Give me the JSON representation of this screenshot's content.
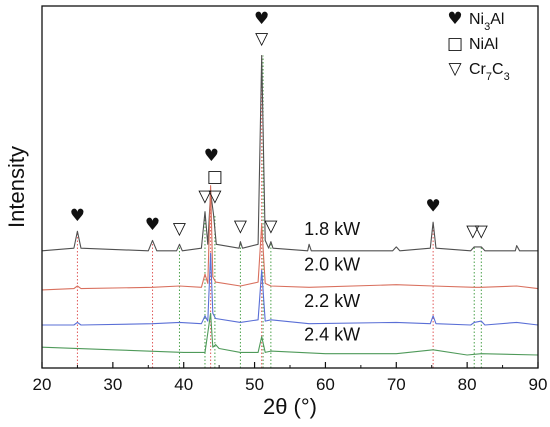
{
  "chart_data": {
    "type": "line",
    "xlabel": "2θ (°)",
    "ylabel": "Intensity",
    "xlim": [
      20,
      90
    ],
    "x_ticks": [
      20,
      30,
      40,
      50,
      60,
      70,
      80,
      90
    ],
    "y_ticks_labels": false,
    "series": [
      {
        "name": "1.8 kW",
        "color": "#505050",
        "baseline": 0.9,
        "points": [
          [
            20,
            0.9
          ],
          [
            24.5,
            0.92
          ],
          [
            25,
            1.05
          ],
          [
            25.5,
            0.92
          ],
          [
            35,
            0.9
          ],
          [
            35.6,
            0.98
          ],
          [
            36.2,
            0.9
          ],
          [
            39,
            0.9
          ],
          [
            39.4,
            0.95
          ],
          [
            39.8,
            0.9
          ],
          [
            42.5,
            0.92
          ],
          [
            43,
            1.2
          ],
          [
            43.4,
            0.95
          ],
          [
            43.8,
            1.35
          ],
          [
            44.2,
            1.18
          ],
          [
            44.6,
            0.95
          ],
          [
            47.8,
            0.92
          ],
          [
            48,
            0.97
          ],
          [
            48.3,
            0.92
          ],
          [
            50.5,
            0.95
          ],
          [
            51,
            2.4
          ],
          [
            51.5,
            0.98
          ],
          [
            52,
            0.92
          ],
          [
            52.3,
            0.97
          ],
          [
            52.6,
            0.92
          ],
          [
            57.5,
            0.9
          ],
          [
            57.7,
            0.95
          ],
          [
            58,
            0.9
          ],
          [
            69.5,
            0.9
          ],
          [
            70,
            0.93
          ],
          [
            70.5,
            0.9
          ],
          [
            74.8,
            0.92
          ],
          [
            75.2,
            1.12
          ],
          [
            75.6,
            0.92
          ],
          [
            80.5,
            0.9
          ],
          [
            81,
            0.93
          ],
          [
            82,
            0.93
          ],
          [
            82.5,
            0.9
          ],
          [
            86.8,
            0.9
          ],
          [
            87,
            0.94
          ],
          [
            87.4,
            0.9
          ],
          [
            90,
            0.9
          ]
        ]
      },
      {
        "name": "2.0 kW",
        "color": "#d9705e",
        "baseline": 0.6,
        "points": [
          [
            20,
            0.6
          ],
          [
            24.5,
            0.61
          ],
          [
            25,
            0.63
          ],
          [
            25.5,
            0.61
          ],
          [
            35.6,
            0.62
          ],
          [
            39.4,
            0.63
          ],
          [
            42.5,
            0.62
          ],
          [
            43,
            0.72
          ],
          [
            43.4,
            0.65
          ],
          [
            43.8,
            1.4
          ],
          [
            44.1,
            0.7
          ],
          [
            44.5,
            0.66
          ],
          [
            48,
            0.63
          ],
          [
            50.5,
            0.66
          ],
          [
            51,
            1.1
          ],
          [
            51.5,
            0.65
          ],
          [
            52.3,
            0.63
          ],
          [
            57.7,
            0.62
          ],
          [
            70,
            0.64
          ],
          [
            75.2,
            0.63
          ],
          [
            81,
            0.62
          ],
          [
            82,
            0.62
          ],
          [
            87,
            0.63
          ],
          [
            90,
            0.61
          ]
        ]
      },
      {
        "name": "2.2 kW",
        "color": "#5a6fd6",
        "baseline": 0.33,
        "points": [
          [
            20,
            0.33
          ],
          [
            24.5,
            0.33
          ],
          [
            25,
            0.35
          ],
          [
            25.5,
            0.33
          ],
          [
            35.6,
            0.34
          ],
          [
            39.4,
            0.35
          ],
          [
            42.5,
            0.34
          ],
          [
            43,
            0.4
          ],
          [
            43.4,
            0.36
          ],
          [
            43.8,
            0.88
          ],
          [
            44.1,
            0.42
          ],
          [
            44.5,
            0.38
          ],
          [
            48,
            0.35
          ],
          [
            50.5,
            0.37
          ],
          [
            51,
            0.75
          ],
          [
            51.5,
            0.36
          ],
          [
            52.3,
            0.37
          ],
          [
            57.7,
            0.34
          ],
          [
            70,
            0.35
          ],
          [
            74.8,
            0.34
          ],
          [
            75.2,
            0.4
          ],
          [
            75.6,
            0.34
          ],
          [
            80.5,
            0.33
          ],
          [
            81,
            0.35
          ],
          [
            82,
            0.36
          ],
          [
            82.5,
            0.33
          ],
          [
            87,
            0.35
          ],
          [
            90,
            0.33
          ]
        ]
      },
      {
        "name": "2.4 kW",
        "color": "#4f9a5a",
        "baseline": 0.1,
        "points": [
          [
            20,
            0.16
          ],
          [
            30,
            0.14
          ],
          [
            40,
            0.12
          ],
          [
            43,
            0.12
          ],
          [
            43.8,
            0.42
          ],
          [
            44.1,
            0.16
          ],
          [
            44.5,
            0.18
          ],
          [
            45,
            0.15
          ],
          [
            48,
            0.12
          ],
          [
            50.5,
            0.12
          ],
          [
            51,
            0.24
          ],
          [
            51.5,
            0.12
          ],
          [
            52.3,
            0.13
          ],
          [
            60,
            0.11
          ],
          [
            70,
            0.11
          ],
          [
            75.2,
            0.14
          ],
          [
            80,
            0.1
          ],
          [
            82,
            0.11
          ],
          [
            90,
            0.1
          ]
        ]
      }
    ],
    "series_label_positions": [
      {
        "label": "1.8 kW",
        "x": 57,
        "y": 1.02
      },
      {
        "label": "2.0 kW",
        "x": 57,
        "y": 0.75
      },
      {
        "label": "2.2 kW",
        "x": 57,
        "y": 0.47
      },
      {
        "label": "2.4 kW",
        "x": 57,
        "y": 0.21
      }
    ],
    "reference_lines": [
      {
        "x": 25.0,
        "color": "#e05a5a",
        "top": 1.05
      },
      {
        "x": 35.6,
        "color": "#e05a5a",
        "top": 0.98
      },
      {
        "x": 39.4,
        "color": "#4aa04a",
        "top": 0.95
      },
      {
        "x": 43.0,
        "color": "#4aa04a",
        "top": 1.2
      },
      {
        "x": 43.8,
        "color": "#e05a5a",
        "top": 1.35
      },
      {
        "x": 44.4,
        "color": "#4aa04a",
        "top": 1.18
      },
      {
        "x": 48.0,
        "color": "#4aa04a",
        "top": 0.97
      },
      {
        "x": 51.0,
        "color": "#e05a5a",
        "top": 2.4
      },
      {
        "x": 51.2,
        "color": "#4aa04a",
        "top": 2.4
      },
      {
        "x": 52.3,
        "color": "#4aa04a",
        "top": 0.97
      },
      {
        "x": 75.2,
        "color": "#e05a5a",
        "top": 1.12
      },
      {
        "x": 81.0,
        "color": "#4aa04a",
        "top": 0.93
      },
      {
        "x": 82.0,
        "color": "#4aa04a",
        "top": 0.93
      }
    ],
    "peak_markers": [
      {
        "x": 25.0,
        "y": 1.13,
        "symbol": "♥"
      },
      {
        "x": 35.6,
        "y": 1.06,
        "symbol": "♥"
      },
      {
        "x": 39.4,
        "y": 1.03,
        "symbol": "▽"
      },
      {
        "x": 43.0,
        "y": 1.28,
        "symbol": "▽"
      },
      {
        "x": 43.9,
        "y": 1.59,
        "symbol": "♥"
      },
      {
        "x": 44.4,
        "y": 1.43,
        "symbol": "□"
      },
      {
        "x": 44.4,
        "y": 1.28,
        "symbol": "▽"
      },
      {
        "x": 48.0,
        "y": 1.05,
        "symbol": "▽"
      },
      {
        "x": 51.0,
        "y": 2.64,
        "symbol": "♥"
      },
      {
        "x": 51.0,
        "y": 2.49,
        "symbol": "▽"
      },
      {
        "x": 52.3,
        "y": 1.05,
        "symbol": "▽"
      },
      {
        "x": 75.2,
        "y": 1.2,
        "symbol": "♥"
      },
      {
        "x": 80.8,
        "y": 1.01,
        "symbol": "▽"
      },
      {
        "x": 82.0,
        "y": 1.01,
        "symbol": "▽"
      }
    ],
    "legend": {
      "placement": "top-right",
      "entries": [
        {
          "symbol": "♥",
          "base": "Ni",
          "sub1": "3",
          "mid": "Al",
          "sub2": ""
        },
        {
          "symbol": "□",
          "base": "NiAl",
          "sub1": "",
          "mid": "",
          "sub2": ""
        },
        {
          "symbol": "▽",
          "base": "Cr",
          "sub1": "7",
          "mid": "C",
          "sub2": "3"
        }
      ]
    }
  }
}
